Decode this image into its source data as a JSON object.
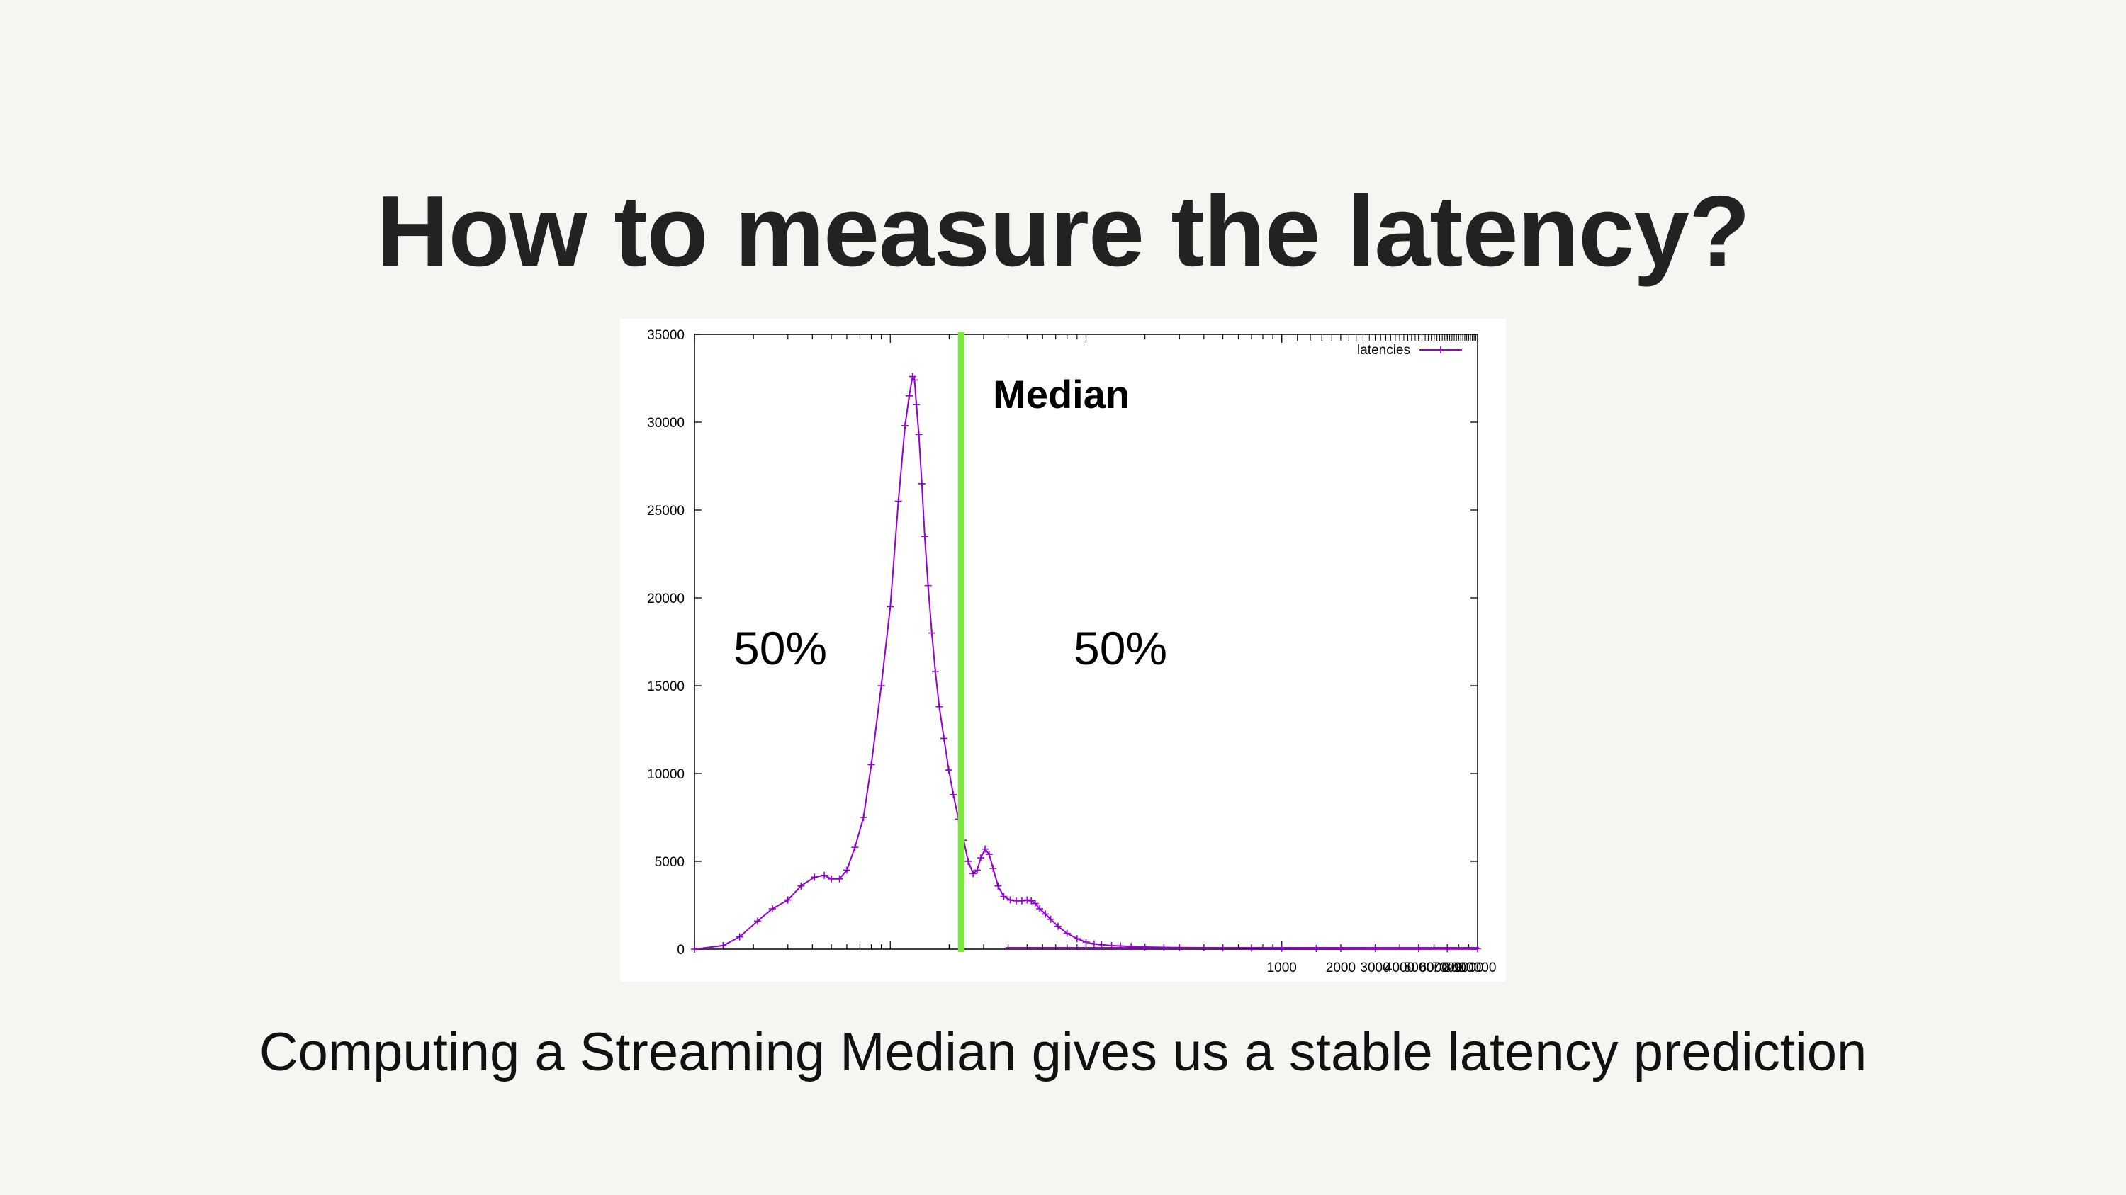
{
  "slide": {
    "title": "How to measure the latency?",
    "caption": "Computing a Streaming Median gives us a stable latency prediction"
  },
  "colors": {
    "background": "#f5f5f1",
    "series": "#9400d3",
    "median_line": "#7be83b"
  },
  "chart_data": {
    "type": "line",
    "title": "",
    "xlabel": "",
    "ylabel": "",
    "x_scale": "log",
    "xlim": [
      1,
      10000
    ],
    "ylim": [
      0,
      35000
    ],
    "grid": false,
    "legend_position": "top-right",
    "y_ticks": [
      "0",
      "5000",
      "10000",
      "15000",
      "20000",
      "25000",
      "30000",
      "35000"
    ],
    "x_tick_labels": [
      "1000",
      "2000",
      "3000",
      "4000",
      "5000",
      "6000",
      "7000",
      "8000",
      "9000",
      "10000"
    ],
    "series": [
      {
        "name": "latencies",
        "color": "#9400d3",
        "x": [
          1.0,
          1.4,
          1.7,
          2.1,
          2.5,
          3.0,
          3.5,
          4.1,
          4.6,
          5.0,
          5.5,
          6.0,
          6.6,
          7.3,
          8.0,
          9.0,
          10.0,
          11.0,
          11.9,
          12.5,
          13.0,
          13.3,
          13.6,
          14.0,
          14.5,
          15.0,
          15.6,
          16.3,
          17.0,
          17.8,
          18.8,
          19.9,
          21.0,
          22.3,
          23.7,
          25.0,
          26.5,
          27.8,
          29.0,
          30.5,
          32.0,
          33.5,
          35.5,
          38.0,
          41.0,
          44.0,
          47.0,
          50.0,
          52.5,
          55.0,
          58.0,
          62.0,
          66.0,
          72.0,
          80.0,
          90.0,
          100.0,
          110.0,
          120.0,
          135.0,
          150.0,
          170.0,
          200.0,
          250.0,
          300.0,
          400.0,
          500.0,
          700.0,
          1000.0,
          1500.0,
          2000.0,
          3000.0,
          5000.0,
          7000.0,
          10000.0
        ],
        "y": [
          0,
          200,
          700,
          1600,
          2300,
          2800,
          3600,
          4100,
          4200,
          4000,
          4000,
          4500,
          5800,
          7500,
          10500,
          15000,
          19500,
          25500,
          29800,
          31500,
          32600,
          32400,
          31000,
          29300,
          26500,
          23500,
          20700,
          18000,
          15800,
          13800,
          12000,
          10200,
          8800,
          7400,
          6200,
          5000,
          4300,
          4500,
          5200,
          5700,
          5400,
          4600,
          3600,
          3000,
          2800,
          2750,
          2750,
          2800,
          2750,
          2600,
          2300,
          2000,
          1700,
          1300,
          900,
          600,
          400,
          300,
          250,
          200,
          180,
          150,
          120,
          100,
          90,
          80,
          70,
          60,
          50,
          40,
          40,
          30,
          30,
          20,
          20
        ]
      }
    ],
    "annotations": {
      "median_label": "Median",
      "median_x": 23.0,
      "left_label": "50%",
      "right_label": "50%"
    }
  }
}
